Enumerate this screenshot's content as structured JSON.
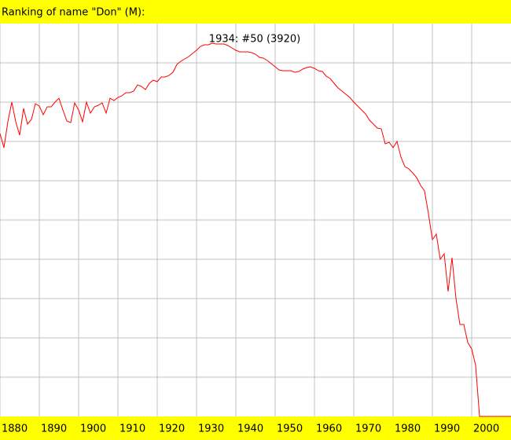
{
  "chart_data": {
    "type": "line",
    "title": "Ranking of name \"Don\" (M):",
    "annotation": "1934: #50 (3920)",
    "x": [
      1880,
      1881,
      1882,
      1883,
      1884,
      1885,
      1886,
      1887,
      1888,
      1889,
      1890,
      1891,
      1892,
      1893,
      1894,
      1895,
      1896,
      1897,
      1898,
      1899,
      1900,
      1901,
      1902,
      1903,
      1904,
      1905,
      1906,
      1907,
      1908,
      1909,
      1910,
      1911,
      1912,
      1913,
      1914,
      1915,
      1916,
      1917,
      1918,
      1919,
      1920,
      1921,
      1922,
      1923,
      1924,
      1925,
      1926,
      1927,
      1928,
      1929,
      1930,
      1931,
      1932,
      1933,
      1934,
      1935,
      1936,
      1937,
      1938,
      1939,
      1940,
      1941,
      1942,
      1943,
      1944,
      1945,
      1946,
      1947,
      1948,
      1949,
      1950,
      1951,
      1952,
      1953,
      1954,
      1955,
      1956,
      1957,
      1958,
      1959,
      1960,
      1961,
      1962,
      1963,
      1964,
      1965,
      1966,
      1967,
      1968,
      1969,
      1970,
      1971,
      1972,
      1973,
      1974,
      1975,
      1976,
      1977,
      1978,
      1979,
      1980,
      1981,
      1982,
      1983,
      1984,
      1985,
      1986,
      1987,
      1988,
      1989,
      1990,
      1991,
      1992,
      1993,
      1994,
      1995,
      1996,
      1997,
      1998,
      1999,
      2000,
      2001,
      2002,
      2003,
      2004,
      2005,
      2006,
      2007,
      2008,
      2009,
      2010
    ],
    "series": [
      {
        "name": "Don",
        "color": "#ff0000",
        "values": [
          280,
          316,
          250,
          200,
          250,
          284,
          216,
          256,
          244,
          204,
          210,
          232,
          212,
          212,
          200,
          190,
          220,
          248,
          252,
          202,
          220,
          250,
          200,
          228,
          212,
          208,
          202,
          228,
          190,
          196,
          188,
          184,
          176,
          176,
          172,
          156,
          160,
          168,
          152,
          144,
          148,
          136,
          136,
          132,
          124,
          104,
          96,
          90,
          84,
          76,
          68,
          58,
          54,
          54,
          50,
          52,
          52,
          52,
          56,
          62,
          68,
          72,
          72,
          72,
          74,
          78,
          86,
          88,
          94,
          102,
          110,
          118,
          120,
          120,
          120,
          124,
          122,
          116,
          112,
          110,
          114,
          120,
          122,
          134,
          140,
          152,
          164,
          172,
          180,
          188,
          200,
          210,
          220,
          230,
          246,
          256,
          266,
          268,
          306,
          302,
          316,
          300,
          340,
          364,
          370,
          380,
          392,
          412,
          426,
          484,
          550,
          536,
          600,
          586,
          682,
          596,
          700,
          766,
          766,
          812,
          828,
          870,
          1000,
          1000,
          1000,
          1000,
          1000,
          1000,
          1000,
          1000,
          1000
        ]
      }
    ],
    "xlim": [
      1880,
      2010
    ],
    "ylim": [
      1000,
      0
    ],
    "xticks": [
      1880,
      1890,
      1900,
      1910,
      1920,
      1930,
      1940,
      1950,
      1960,
      1970,
      1980,
      1990,
      2000
    ],
    "y_gridlines": [
      100,
      200,
      300,
      400,
      500,
      600,
      700,
      800,
      900
    ],
    "grid": true,
    "background": "#ffff00"
  }
}
